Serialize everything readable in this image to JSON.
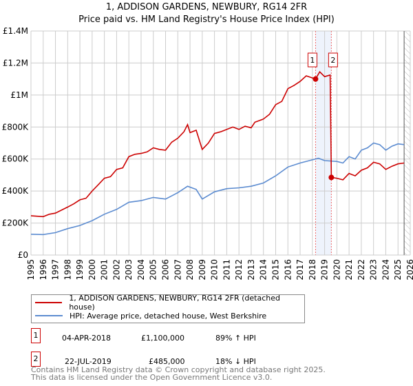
{
  "title": "1, ADDISON GARDENS, NEWBURY, RG14 2FR",
  "subtitle": "Price paid vs. HM Land Registry's House Price Index (HPI)",
  "chart_data": {
    "type": "line",
    "title": "1, ADDISON GARDENS, NEWBURY, RG14 2FR",
    "subtitle": "Price paid vs. HM Land Registry's House Price Index (HPI)",
    "xlim": [
      1995,
      2026
    ],
    "ylim": [
      0,
      1400000
    ],
    "x_ticks": [
      "1995",
      "1996",
      "1997",
      "1998",
      "1999",
      "2000",
      "2001",
      "2002",
      "2003",
      "2004",
      "2005",
      "2006",
      "2007",
      "2008",
      "2009",
      "2010",
      "2011",
      "2012",
      "2013",
      "2014",
      "2015",
      "2016",
      "2017",
      "2018",
      "2019",
      "2020",
      "2021",
      "2022",
      "2023",
      "2024",
      "2025",
      "2026"
    ],
    "y_ticks": [
      {
        "v": 0,
        "label": "£0"
      },
      {
        "v": 200000,
        "label": "£200K"
      },
      {
        "v": 400000,
        "label": "£400K"
      },
      {
        "v": 600000,
        "label": "£600K"
      },
      {
        "v": 800000,
        "label": "£800K"
      },
      {
        "v": 1000000,
        "label": "£1M"
      },
      {
        "v": 1200000,
        "label": "£1.2M"
      },
      {
        "v": 1400000,
        "label": "£1.4M"
      }
    ],
    "grid": true,
    "legend_position": "bottom",
    "highlight_span": [
      2018.26,
      2019.55
    ],
    "hatched_from": 2025.5,
    "series": [
      {
        "name": "1, ADDISON GARDENS, NEWBURY, RG14 2FR (detached house)",
        "color": "#cc0000",
        "x": [
          1995,
          1996,
          1996.5,
          1997,
          1998,
          1998.5,
          1999,
          1999.5,
          2000,
          2000.5,
          2001,
          2001.5,
          2002,
          2002.5,
          2003,
          2003.5,
          2004,
          2004.5,
          2005,
          2005.5,
          2006,
          2006.5,
          2007,
          2007.5,
          2007.8,
          2008,
          2008.5,
          2009,
          2009.5,
          2010,
          2010.5,
          2011,
          2011.5,
          2012,
          2012.5,
          2013,
          2013.3,
          2014,
          2014.5,
          2015,
          2015.5,
          2016,
          2016.5,
          2017,
          2017.5,
          2018.26,
          2018.6,
          2019,
          2019.45,
          2019.55,
          2020,
          2020.5,
          2021,
          2021.5,
          2022,
          2022.5,
          2023,
          2023.5,
          2024,
          2024.5,
          2025,
          2025.5
        ],
        "values": [
          245000,
          240000,
          255000,
          262000,
          300000,
          320000,
          345000,
          355000,
          400000,
          440000,
          480000,
          490000,
          535000,
          545000,
          615000,
          630000,
          635000,
          645000,
          670000,
          660000,
          655000,
          705000,
          730000,
          770000,
          815000,
          765000,
          780000,
          660000,
          700000,
          760000,
          770000,
          785000,
          800000,
          785000,
          805000,
          795000,
          830000,
          850000,
          880000,
          940000,
          960000,
          1040000,
          1060000,
          1085000,
          1120000,
          1100000,
          1145000,
          1115000,
          1125000,
          485000,
          480000,
          470000,
          510000,
          495000,
          530000,
          545000,
          580000,
          570000,
          535000,
          555000,
          570000,
          575000
        ]
      },
      {
        "name": "HPI: Average price, detached house, West Berkshire",
        "color": "#5b8bd0",
        "x": [
          1995,
          1996,
          1997,
          1998,
          1999,
          2000,
          2001,
          2002,
          2003,
          2004,
          2005,
          2006,
          2007,
          2007.8,
          2008.5,
          2009,
          2010,
          2011,
          2012,
          2013,
          2014,
          2015,
          2016,
          2017,
          2018,
          2018.5,
          2019,
          2020,
          2020.5,
          2021,
          2021.5,
          2022,
          2022.5,
          2023,
          2023.5,
          2024,
          2024.5,
          2025,
          2025.5
        ],
        "values": [
          130000,
          128000,
          140000,
          165000,
          185000,
          215000,
          255000,
          285000,
          330000,
          340000,
          360000,
          350000,
          390000,
          430000,
          410000,
          350000,
          395000,
          415000,
          420000,
          430000,
          450000,
          495000,
          550000,
          575000,
          595000,
          605000,
          590000,
          585000,
          575000,
          615000,
          600000,
          655000,
          670000,
          700000,
          690000,
          655000,
          680000,
          695000,
          690000
        ]
      }
    ],
    "annotations": [
      {
        "label": "1",
        "x": 2018.26,
        "value": 1100000
      },
      {
        "label": "2",
        "x": 2019.55,
        "value": 485000
      }
    ]
  },
  "legend": {
    "red": "1, ADDISON GARDENS, NEWBURY, RG14 2FR (detached house)",
    "blue": "HPI: Average price, detached house, West Berkshire"
  },
  "transactions": [
    {
      "num": "1",
      "date": "04-APR-2018",
      "price": "£1,100,000",
      "hpi": "89% ↑ HPI"
    },
    {
      "num": "2",
      "date": "22-JUL-2019",
      "price": "£485,000",
      "hpi": "18% ↓ HPI"
    }
  ],
  "footer": {
    "line1": "Contains HM Land Registry data © Crown copyright and database right 2025.",
    "line2": "This data is licensed under the Open Government Licence v3.0."
  }
}
